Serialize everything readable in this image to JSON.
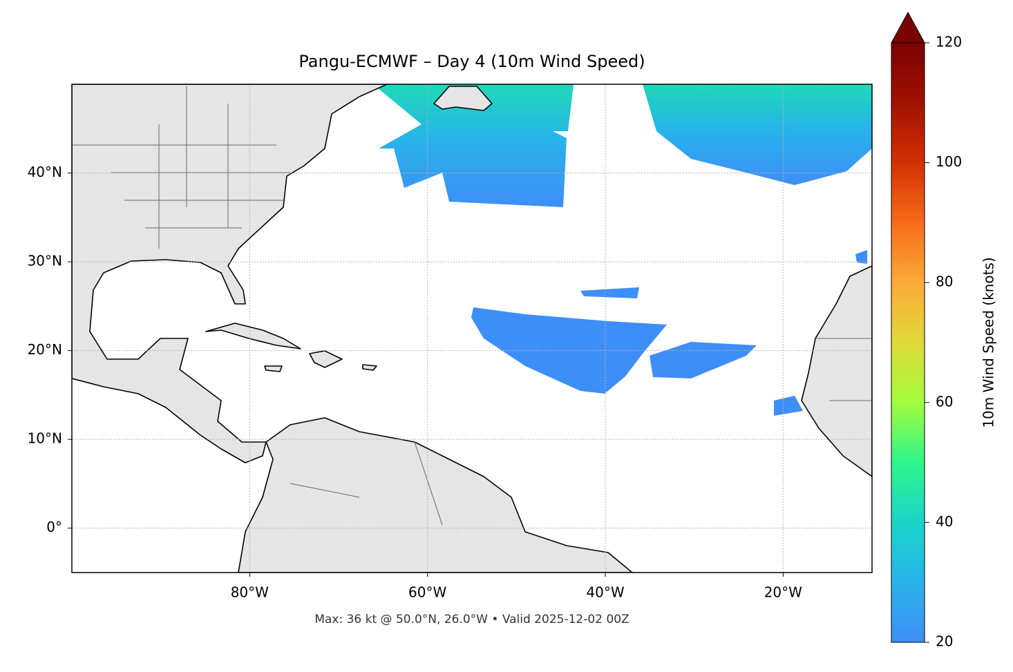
{
  "chart_data": {
    "type": "map",
    "title": "Pangu-ECMWF – Day 4 (10m Wind Speed)",
    "subtitle": "Max: 36 kt @ 50.0°N, 26.0°W • Valid 2025-12-02 00Z",
    "xlim": [
      -100,
      -10
    ],
    "ylim": [
      -5,
      50
    ],
    "xticks": [
      {
        "value": -80,
        "label": "80°W"
      },
      {
        "value": -60,
        "label": "60°W"
      },
      {
        "value": -40,
        "label": "40°W"
      },
      {
        "value": -20,
        "label": "20°W"
      }
    ],
    "yticks": [
      {
        "value": 0,
        "label": "0°"
      },
      {
        "value": 10,
        "label": "10°N"
      },
      {
        "value": 20,
        "label": "20°N"
      },
      {
        "value": 30,
        "label": "30°N"
      },
      {
        "value": 40,
        "label": "40°N"
      }
    ],
    "grid": true,
    "colorbar": {
      "label": "10m Wind Speed (knots)",
      "lim": [
        20,
        120
      ],
      "ticks": [
        20,
        40,
        60,
        80,
        100,
        120
      ],
      "colors": [
        "#3e8ef7",
        "#27b3e9",
        "#19d5c8",
        "#2ff58c",
        "#a4fc3c",
        "#e0d93a",
        "#fbab37",
        "#f66b19",
        "#d23105",
        "#a01101",
        "#7a0403"
      ]
    }
  }
}
